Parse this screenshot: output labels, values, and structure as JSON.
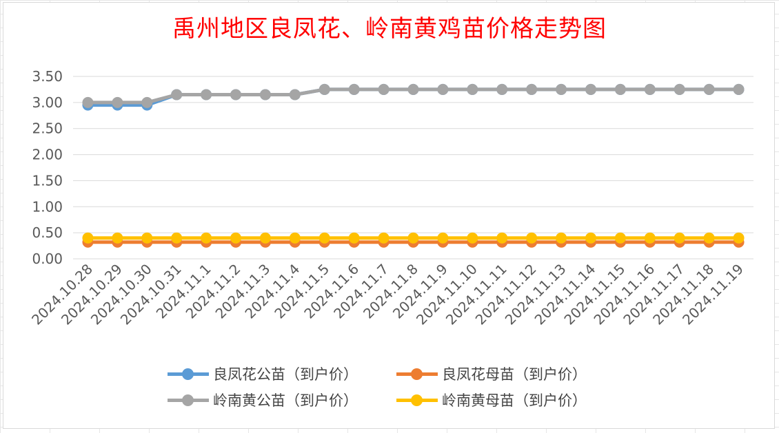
{
  "chart_data": {
    "type": "line",
    "title": "禹州地区良凤花、岭南黄鸡苗价格走势图",
    "xlabel": "",
    "ylabel": "",
    "ylim": [
      0,
      3.5
    ],
    "yticks": [
      "0.00",
      "0.50",
      "1.00",
      "1.50",
      "2.00",
      "2.50",
      "3.00",
      "3.50"
    ],
    "grid": true,
    "legend_position": "bottom",
    "categories": [
      "2024.10.28",
      "2024.10.29",
      "2024.10.30",
      "2024.10.31",
      "2024.11.1",
      "2024.11.2",
      "2024.11.3",
      "2024.11.4",
      "2024.11.5",
      "2024.11.6",
      "2024.11.7",
      "2024.11.8",
      "2024.11.9",
      "2024.11.10",
      "2024.11.11",
      "2024.11.12",
      "2024.11.13",
      "2024.11.14",
      "2024.11.15",
      "2024.11.16",
      "2024.11.17",
      "2024.11.18",
      "2024.11.19"
    ],
    "series": [
      {
        "name": "良凤花公苗（到户价）",
        "color": "#5b9bd5",
        "values": [
          2.95,
          2.95,
          2.95,
          3.15,
          3.15,
          3.15,
          3.15,
          3.15,
          3.25,
          3.25,
          3.25,
          3.25,
          3.25,
          3.25,
          3.25,
          3.25,
          3.25,
          3.25,
          3.25,
          3.25,
          3.25,
          3.25,
          3.25
        ]
      },
      {
        "name": "良凤花母苗（到户价）",
        "color": "#ed7d31",
        "values": [
          0.32,
          0.32,
          0.32,
          0.32,
          0.32,
          0.32,
          0.32,
          0.32,
          0.32,
          0.32,
          0.32,
          0.32,
          0.32,
          0.32,
          0.32,
          0.32,
          0.32,
          0.32,
          0.32,
          0.32,
          0.32,
          0.32,
          0.32
        ]
      },
      {
        "name": "岭南黄公苗（到户价）",
        "color": "#a5a5a5",
        "values": [
          3.0,
          3.0,
          3.0,
          3.15,
          3.15,
          3.15,
          3.15,
          3.15,
          3.25,
          3.25,
          3.25,
          3.25,
          3.25,
          3.25,
          3.25,
          3.25,
          3.25,
          3.25,
          3.25,
          3.25,
          3.25,
          3.25,
          3.25
        ]
      },
      {
        "name": "岭南黄母苗（到户价）",
        "color": "#ffc000",
        "values": [
          0.4,
          0.4,
          0.4,
          0.4,
          0.4,
          0.4,
          0.4,
          0.4,
          0.4,
          0.4,
          0.4,
          0.4,
          0.4,
          0.4,
          0.4,
          0.4,
          0.4,
          0.4,
          0.4,
          0.4,
          0.4,
          0.4,
          0.4
        ]
      }
    ]
  }
}
